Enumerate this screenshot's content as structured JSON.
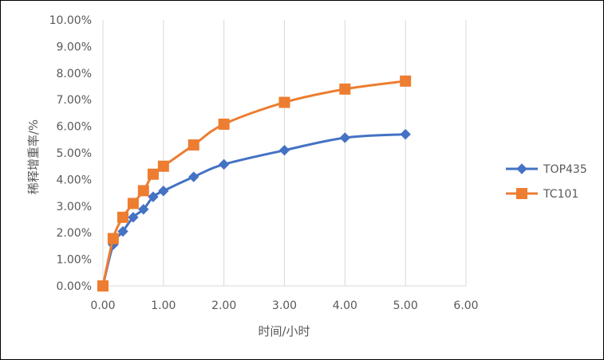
{
  "chart_data": {
    "type": "line",
    "title": "",
    "xlabel": "时间/小时",
    "ylabel": "稀释增重率/%",
    "xlim": [
      0,
      6
    ],
    "ylim": [
      0,
      0.1
    ],
    "x_ticks": [
      "0.00",
      "1.00",
      "2.00",
      "3.00",
      "4.00",
      "5.00",
      "6.00"
    ],
    "y_ticks": [
      "0.00%",
      "1.00%",
      "2.00%",
      "3.00%",
      "4.00%",
      "5.00%",
      "6.00%",
      "7.00%",
      "8.00%",
      "9.00%",
      "10.00%"
    ],
    "grid": "vertical",
    "legend_position": "right",
    "series": [
      {
        "name": "TOP435",
        "color": "#4472C4",
        "marker": "diamond",
        "points": [
          {
            "x": 0,
            "y": 0.0
          },
          {
            "x": 0.17,
            "y": 0.0155
          },
          {
            "x": 0.33,
            "y": 0.0205
          },
          {
            "x": 0.5,
            "y": 0.0258
          },
          {
            "x": 0.67,
            "y": 0.0288
          },
          {
            "x": 0.83,
            "y": 0.0335
          },
          {
            "x": 1.0,
            "y": 0.0357
          },
          {
            "x": 1.5,
            "y": 0.041
          },
          {
            "x": 2.0,
            "y": 0.0457
          },
          {
            "x": 3.0,
            "y": 0.051
          },
          {
            "x": 4.0,
            "y": 0.0557
          },
          {
            "x": 5.0,
            "y": 0.057
          }
        ]
      },
      {
        "name": "TC101",
        "color": "#ED7D31",
        "marker": "square",
        "points": [
          {
            "x": 0,
            "y": 0.0
          },
          {
            "x": 0.17,
            "y": 0.0178
          },
          {
            "x": 0.33,
            "y": 0.0258
          },
          {
            "x": 0.5,
            "y": 0.031
          },
          {
            "x": 0.67,
            "y": 0.0358
          },
          {
            "x": 0.83,
            "y": 0.042
          },
          {
            "x": 1.0,
            "y": 0.045
          },
          {
            "x": 1.5,
            "y": 0.053
          },
          {
            "x": 2.0,
            "y": 0.0608
          },
          {
            "x": 3.0,
            "y": 0.069
          },
          {
            "x": 4.0,
            "y": 0.074
          },
          {
            "x": 5.0,
            "y": 0.077
          }
        ]
      }
    ]
  }
}
